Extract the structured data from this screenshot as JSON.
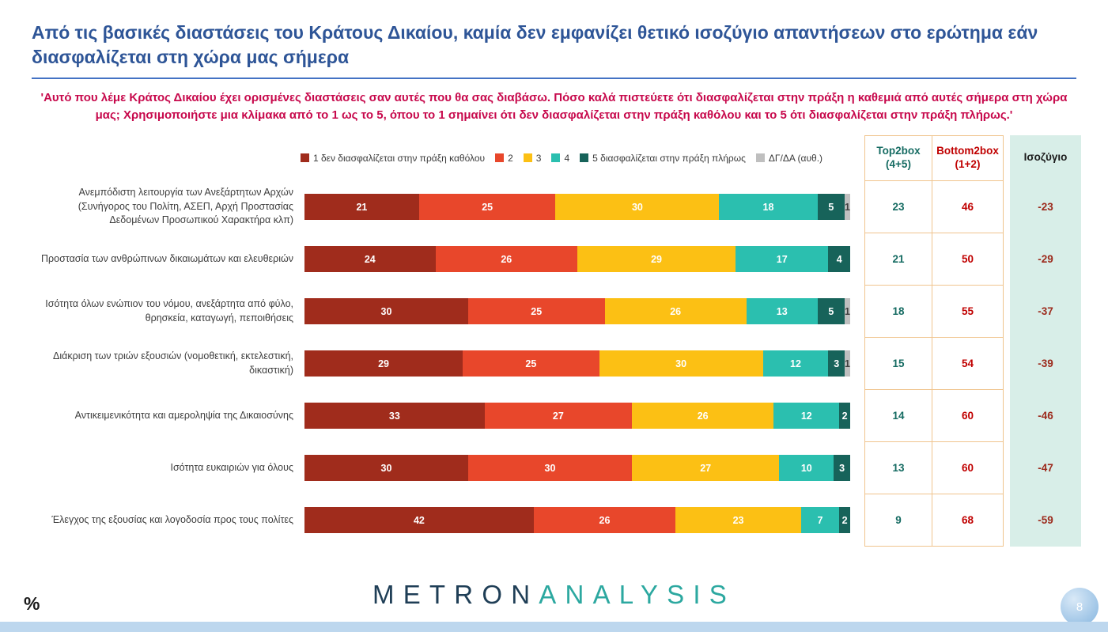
{
  "page": {
    "title": "Από τις βασικές διαστάσεις του Κράτους Δικαίου, καμία δεν εμφανίζει θετικό ισοζύγιο απαντήσεων στο ερώτημα εάν διασφαλίζεται στη χώρα μας σήμερα",
    "subtitle": "'Αυτό που λέμε Κράτος Δικαίου έχει ορισμένες διαστάσεις σαν αυτές που θα σας διαβάσω. Πόσο καλά πιστεύετε ότι διασφαλίζεται στην πράξη η καθεμιά από αυτές σήμερα στη χώρα μας; Χρησιμοποιήστε μια κλίμακα από το 1 ως το 5, όπου το 1 σημαίνει ότι δεν διασφαλίζεται στην πράξη καθόλου και το 5 ότι διασφαλίζεται στην πράξη πλήρως.'",
    "percent_label": "%",
    "page_number": "8",
    "logo": {
      "part1": "METRON",
      "part2": "ANALYSIS"
    }
  },
  "theme": {
    "title_blue": "#2E5597",
    "rule_blue": "#4472C4",
    "subtitle_red": "#C7094C",
    "mint": "#D8EEE8",
    "tan_border": "#F0C48E",
    "t2b_color": "#156B62",
    "b2b_color": "#C00000",
    "balance_color": "#9C2A1C",
    "logo_navy": "#1F3E56",
    "logo_teal": "#2CA8A0",
    "strip_blue": "#BDD7EE",
    "page_circle": "#85B5DF"
  },
  "chart_data": {
    "type": "bar",
    "stacked": true,
    "orientation": "horizontal",
    "unit": "%",
    "xlim": [
      0,
      100
    ],
    "legend_position": "top",
    "legend": [
      {
        "label": "1  δεν διασφαλίζεται στην πράξη καθόλου",
        "color": "#A02C1C"
      },
      {
        "label": "2",
        "color": "#E8472B"
      },
      {
        "label": "3",
        "color": "#FCC014"
      },
      {
        "label": "4",
        "color": "#2BBFAF"
      },
      {
        "label": "5 διασφαλίζεται στην πράξη πλήρως",
        "color": "#17635A"
      },
      {
        "label": "ΔΓ/ΔΑ (αυθ.)",
        "color": "#BFBFBF"
      }
    ],
    "columns": [
      {
        "title": "Top2box",
        "sub": "(4+5)"
      },
      {
        "title": "Bottom2box",
        "sub": "(1+2)"
      },
      {
        "title": "Ισοζύγιο",
        "sub": ""
      }
    ],
    "rows": [
      {
        "label": "Ανεμπόδιστη λειτουργία των Ανεξάρτητων Αρχών (Συνήγορος του Πολίτη, ΑΣΕΠ, Αρχή Προστασίας Δεδομένων Προσωπικού Χαρακτήρα κλπ)",
        "values": [
          21,
          25,
          30,
          18,
          5,
          1
        ],
        "top2box": 23,
        "bottom2box": 46,
        "balance": -23
      },
      {
        "label": "Προστασία των ανθρώπινων δικαιωμάτων και ελευθεριών",
        "values": [
          24,
          26,
          29,
          17,
          4
        ],
        "top2box": 21,
        "bottom2box": 50,
        "balance": -29
      },
      {
        "label": "Ισότητα όλων ενώπιον του νόμου, ανεξάρτητα από φύλο, θρησκεία, καταγωγή, πεποιθήσεις",
        "values": [
          30,
          25,
          26,
          13,
          5,
          1
        ],
        "top2box": 18,
        "bottom2box": 55,
        "balance": -37
      },
      {
        "label": "Διάκριση των τριών εξουσιών (νομοθετική, εκτελεστική, δικαστική)",
        "values": [
          29,
          25,
          30,
          12,
          3,
          1
        ],
        "top2box": 15,
        "bottom2box": 54,
        "balance": -39
      },
      {
        "label": "Αντικειμενικότητα και αμεροληψία της Δικαιοσύνης",
        "values": [
          33,
          27,
          26,
          12,
          2
        ],
        "top2box": 14,
        "bottom2box": 60,
        "balance": -46
      },
      {
        "label": "Ισότητα ευκαιριών για όλους",
        "values": [
          30,
          30,
          27,
          10,
          3
        ],
        "top2box": 13,
        "bottom2box": 60,
        "balance": -47
      },
      {
        "label": "Έλεγχος της εξουσίας και λογοδοσία προς τους πολίτες",
        "values": [
          42,
          26,
          23,
          7,
          2
        ],
        "top2box": 9,
        "bottom2box": 68,
        "balance": -59
      }
    ]
  }
}
